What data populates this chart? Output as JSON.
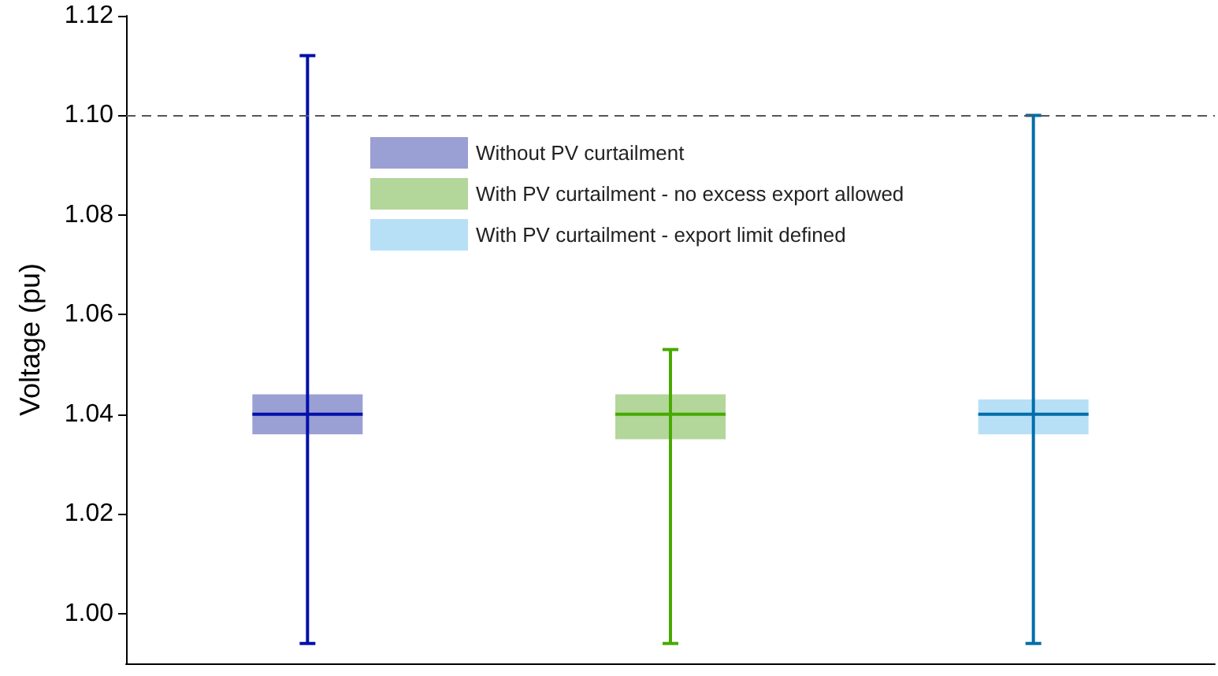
{
  "chart_data": {
    "type": "box",
    "ylabel": "Voltage (pu)",
    "categories": [
      null,
      null,
      null
    ],
    "series": [
      {
        "name": "Without PV curtailment",
        "color": "#9a9fd4",
        "boxes": [
          {
            "low": 0.994,
            "q1": 1.036,
            "median": 1.04,
            "q3": 1.044,
            "high": 1.112
          },
          null,
          null
        ]
      },
      {
        "name": "With PV curtailment - no excess export allowed",
        "color": "#b3d69a",
        "boxes": [
          null,
          {
            "low": 0.994,
            "q1": 1.035,
            "median": 1.04,
            "q3": 1.044,
            "high": 1.053
          },
          null
        ]
      },
      {
        "name": "With PV curtailment - export limit defined",
        "color": "#b7e0f7",
        "boxes": [
          null,
          null,
          {
            "low": 0.994,
            "q1": 1.036,
            "median": 1.04,
            "q3": 1.043,
            "high": 1.1
          }
        ]
      }
    ],
    "ylim": [
      0.99,
      1.12
    ],
    "yticks": [
      {
        "value": 1.0,
        "label": "1.00"
      },
      {
        "value": 1.02,
        "label": "1.02"
      },
      {
        "value": 1.04,
        "label": "1.04"
      },
      {
        "value": 1.06,
        "label": "1.06"
      },
      {
        "value": 1.08,
        "label": "1.08"
      },
      {
        "value": 1.1,
        "label": "1.10"
      },
      {
        "value": 1.12,
        "label": "1.12"
      }
    ],
    "ref_lines": [
      {
        "axis": "y",
        "value": 1.1,
        "color": "#555555",
        "line_style": "dashed"
      }
    ],
    "grid": false,
    "legend": "top"
  }
}
